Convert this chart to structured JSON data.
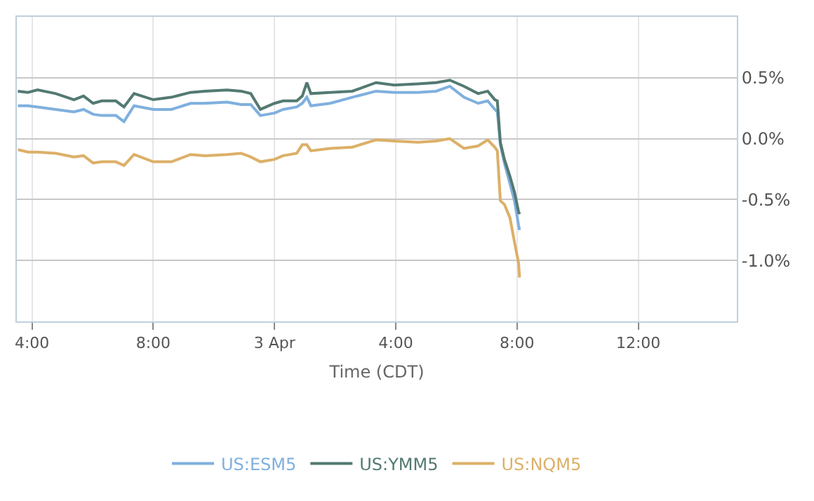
{
  "chart_data": {
    "type": "line",
    "xlabel": "Time (CDT)",
    "x": [
      "--04-02T15:32",
      "--04-02T15:52",
      "--04-02T16:11",
      "--04-02T16:47",
      "--04-02T17:23",
      "--04-02T17:42",
      "--04-02T18:01",
      "--04-02T18:18",
      "--04-02T18:46",
      "--04-02T19:02",
      "--04-02T19:22",
      "--04-02T20:00",
      "--04-02T20:36",
      "--04-02T21:14",
      "--04-02T21:42",
      "--04-02T22:26",
      "--04-02T22:54",
      "--04-02T23:13",
      "--04-02T23:32",
      "--04-03T00:00",
      "--04-03T00:17",
      "--04-03T00:44",
      "--04-03T00:55",
      "--04-03T01:04",
      "--04-03T01:12",
      "--04-03T01:50",
      "--04-03T02:34",
      "--04-03T03:21",
      "--04-03T03:57",
      "--04-03T04:44",
      "--04-03T05:20",
      "--04-03T05:47",
      "--04-03T06:15",
      "--04-03T06:43",
      "--04-03T07:02",
      "--04-03T07:16",
      "--04-03T07:21",
      "--04-03T07:27",
      "--04-03T07:35",
      "--04-03T07:46",
      "--04-03T07:55",
      "--04-03T08:03",
      "--04-03T08:05"
    ],
    "series": [
      {
        "name": "US:ESM5",
        "color": "#7fb0de",
        "values": [
          0.27,
          0.27,
          0.26,
          0.24,
          0.22,
          0.24,
          0.2,
          0.19,
          0.19,
          0.14,
          0.27,
          0.24,
          0.24,
          0.29,
          0.29,
          0.3,
          0.28,
          0.28,
          0.19,
          0.21,
          0.24,
          0.26,
          0.29,
          0.34,
          0.27,
          0.29,
          0.34,
          0.39,
          0.38,
          0.38,
          0.39,
          0.43,
          0.34,
          0.29,
          0.31,
          0.24,
          0.22,
          -0.05,
          -0.2,
          -0.37,
          -0.51,
          -0.71,
          -0.75
        ]
      },
      {
        "name": "US:YMM5",
        "color": "#537a72",
        "values": [
          0.39,
          0.38,
          0.4,
          0.37,
          0.32,
          0.35,
          0.29,
          0.31,
          0.31,
          0.26,
          0.37,
          0.32,
          0.34,
          0.38,
          0.39,
          0.4,
          0.39,
          0.37,
          0.24,
          0.29,
          0.31,
          0.31,
          0.35,
          0.46,
          0.37,
          0.38,
          0.39,
          0.46,
          0.44,
          0.45,
          0.46,
          0.48,
          0.43,
          0.37,
          0.39,
          0.32,
          0.31,
          -0.03,
          -0.17,
          -0.31,
          -0.44,
          -0.6,
          -0.62
        ]
      },
      {
        "name": "US:NQM5",
        "color": "#dcb068",
        "values": [
          -0.09,
          -0.11,
          -0.11,
          -0.12,
          -0.15,
          -0.14,
          -0.2,
          -0.19,
          -0.19,
          -0.22,
          -0.13,
          -0.19,
          -0.19,
          -0.13,
          -0.14,
          -0.13,
          -0.12,
          -0.15,
          -0.19,
          -0.17,
          -0.14,
          -0.12,
          -0.05,
          -0.05,
          -0.1,
          -0.08,
          -0.07,
          -0.01,
          -0.02,
          -0.03,
          -0.02,
          0.0,
          -0.08,
          -0.06,
          -0.01,
          -0.07,
          -0.1,
          -0.51,
          -0.54,
          -0.65,
          -0.85,
          -1.02,
          -1.14
        ]
      }
    ],
    "xlim": [
      "--04-02T15:30",
      "--04-03T15:15"
    ],
    "xticks": [
      {
        "value": "--04-02T16:00",
        "label": "4:00"
      },
      {
        "value": "--04-02T20:00",
        "label": "8:00"
      },
      {
        "value": "--04-03T00:00",
        "label": "3 Apr"
      },
      {
        "value": "--04-03T04:00",
        "label": "4:00"
      },
      {
        "value": "--04-03T08:00",
        "label": "8:00"
      },
      {
        "value": "--04-03T12:00",
        "label": "12:00"
      }
    ],
    "ylim": [
      -1.5,
      1.0
    ],
    "yticks": [
      {
        "value": 0.5,
        "label": "0.5%"
      },
      {
        "value": 0,
        "label": "0.0%"
      },
      {
        "value": -0.5,
        "label": "-0.5%"
      },
      {
        "value": -1.0,
        "label": "-1.0%"
      }
    ],
    "grid": true,
    "legend": "bottom",
    "marker": "none",
    "line_style": "solid"
  }
}
